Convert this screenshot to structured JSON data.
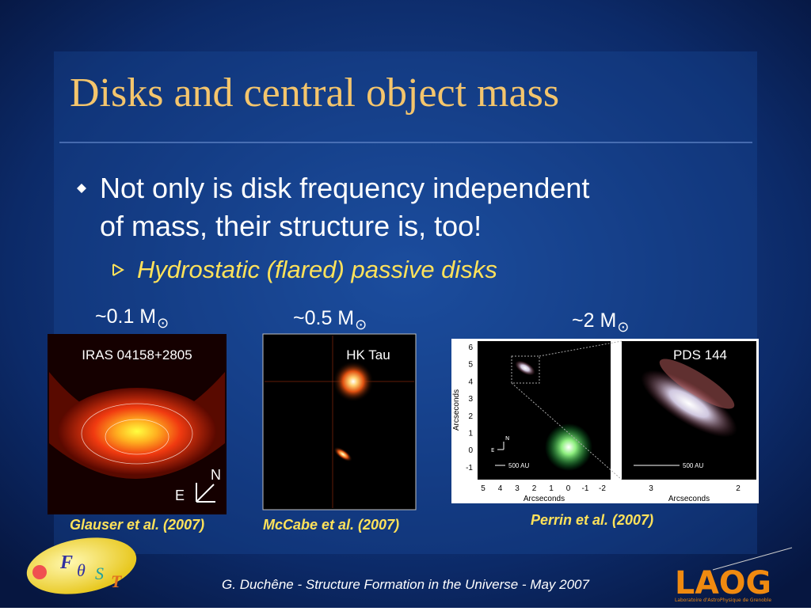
{
  "title": "Disks and central object mass",
  "bullets": [
    {
      "text_lines": [
        "Not only is disk frequency independent",
        "of mass, their structure is, too!"
      ],
      "sub": "Hydrostatic (flared) passive disks"
    }
  ],
  "panels": [
    {
      "mass": "~0.1 M",
      "symbol": "⊙",
      "name": "IRAS 04158+2805",
      "credit": "Glauser et al. (2007)",
      "compass": [
        "N",
        "E"
      ]
    },
    {
      "mass": "~0.5 M",
      "symbol": "⊙",
      "name": "HK Tau",
      "credit": "McCabe et al. (2007)"
    },
    {
      "mass": "~2 M",
      "symbol": "⊙",
      "name": "PDS 144",
      "credit": "Perrin et al. (2007)",
      "y_ticks": [
        "6",
        "5",
        "4",
        "3",
        "2",
        "1",
        "0",
        "-1"
      ],
      "x_ticks": [
        "5",
        "4",
        "3",
        "2",
        "1",
        "0",
        "-1",
        "-2"
      ],
      "x_ticks_right": [
        "3",
        "2"
      ],
      "axis_label": "Arcseconds",
      "scale_bar": "500 AU",
      "compass": [
        "N",
        "E"
      ]
    }
  ],
  "footer": "G. Duchêne - Structure Formation in the Universe - May 2007",
  "logos": {
    "fost": [
      "F",
      "θ",
      "S",
      "T"
    ],
    "laog": "LAOG",
    "laog_sub": "Laboratoire d'AstroPhysique de Grenoble"
  }
}
